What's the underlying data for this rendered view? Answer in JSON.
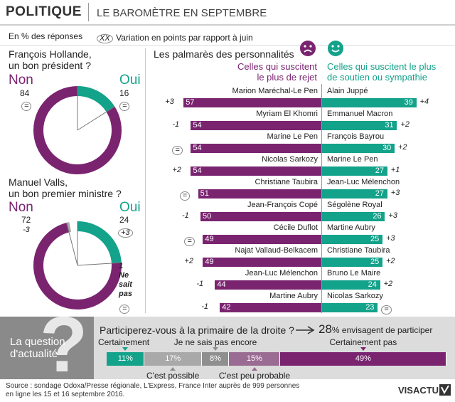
{
  "header": {
    "title": "POLITIQUE",
    "subtitle": "LE BAROMÈTRE EN SEPTEMBRE"
  },
  "legend": {
    "percent_label": "En % des réponses",
    "variation_symbol": "XX",
    "variation_label": "Variation en points par rapport à juin"
  },
  "hollande": {
    "question_line1": "François Hollande,",
    "question_line2": "un bon président ?",
    "non_label": "Non",
    "oui_label": "Oui",
    "non_value": "84",
    "oui_value": "16",
    "non_var": "=",
    "oui_var": "="
  },
  "valls": {
    "question_line1": "Manuel Valls,",
    "question_line2": "un bon premier ministre ?",
    "non_label": "Non",
    "oui_label": "Oui",
    "non_value": "72",
    "oui_value": "24",
    "non_var": "-3",
    "oui_var": "+3",
    "nsp_1": "1",
    "nsp_2": "Ne",
    "nsp_3": "sait",
    "nsp_4": "pas",
    "nsp_var": "="
  },
  "palmares": {
    "title": "Les palmarès des personnalités",
    "rejet_header_1": "Celles qui suscitent",
    "rejet_header_2": "le plus de rejet",
    "soutien_header_1": "Celles qui suscitent le plus",
    "soutien_header_2": "de soutien ou sympathie"
  },
  "colors": {
    "purple": "#7a2470",
    "teal": "#13a28a",
    "grey": "#a8a8a8"
  },
  "chart_data": [
    {
      "type": "pie",
      "title": "François Hollande, un bon président ?",
      "slices": [
        {
          "label": "Non",
          "value": 84
        },
        {
          "label": "Oui",
          "value": 16
        }
      ]
    },
    {
      "type": "pie",
      "title": "Manuel Valls, un bon premier ministre ?",
      "slices": [
        {
          "label": "Non",
          "value": 72
        },
        {
          "label": "Oui",
          "value": 24
        },
        {
          "label": "Ne sait pas",
          "value": 1
        }
      ]
    },
    {
      "type": "bar",
      "title": "Celles qui suscitent le plus de rejet",
      "rows": [
        {
          "name": "Marion Maréchal-Le Pen",
          "value": 57,
          "var": "+3"
        },
        {
          "name": "Myriam El Khomri",
          "value": 54,
          "var": "-1"
        },
        {
          "name": "Marine Le Pen",
          "value": 54,
          "var": "="
        },
        {
          "name": "Nicolas Sarkozy",
          "value": 54,
          "var": "+2"
        },
        {
          "name": "Christiane Taubira",
          "value": 51,
          "var": "="
        },
        {
          "name": "Jean-François Copé",
          "value": 50,
          "var": "-1"
        },
        {
          "name": "Cécile Duflot",
          "value": 49,
          "var": "="
        },
        {
          "name": "Najat Vallaud-Belkacem",
          "value": 49,
          "var": "+2"
        },
        {
          "name": "Jean-Luc Mélenchon",
          "value": 44,
          "var": "-1"
        },
        {
          "name": "Martine Aubry",
          "value": 42,
          "var": "-1"
        }
      ]
    },
    {
      "type": "bar",
      "title": "Celles qui suscitent le plus de soutien ou sympathie",
      "rows": [
        {
          "name": "Alain Juppé",
          "value": 39,
          "var": "+4"
        },
        {
          "name": "Emmanuel Macron",
          "value": 31,
          "var": "+2"
        },
        {
          "name": "François Bayrou",
          "value": 30,
          "var": "+2"
        },
        {
          "name": "Marine Le Pen",
          "value": 27,
          "var": "+1"
        },
        {
          "name": "Jean-Luc Mélenchon",
          "value": 27,
          "var": "+3"
        },
        {
          "name": "Ségolène Royal",
          "value": 26,
          "var": "+3"
        },
        {
          "name": "Martine Aubry",
          "value": 25,
          "var": "+3"
        },
        {
          "name": "Christiane Taubira",
          "value": 25,
          "var": "+2"
        },
        {
          "name": "Bruno Le Maire",
          "value": 24,
          "var": "+2"
        },
        {
          "name": "Nicolas Sarkozy",
          "value": 23,
          "var": "="
        }
      ]
    },
    {
      "type": "bar",
      "title": "Participerez-vous à la primaire de la droite ?",
      "segments": [
        {
          "label": "Certainement",
          "value": 11,
          "display": "11%"
        },
        {
          "label": "C'est possible",
          "value": 17,
          "display": "17%"
        },
        {
          "label": "Je ne sais pas encore",
          "value": 8,
          "display": "8%"
        },
        {
          "label": "C'est peu probable",
          "value": 15,
          "display": "15%"
        },
        {
          "label": "Certainement pas",
          "value": 49,
          "display": "49%"
        }
      ]
    }
  ],
  "actualite": {
    "label_1": "La question",
    "label_2": "d'actualité",
    "qmark": "?",
    "question": "Participerez-vous à la primaire de la droite ?",
    "result_value": "28",
    "result_text": "% envisagent de participer"
  },
  "footer": {
    "line1": "Source : sondage Odoxa/Presse régionale, L'Express, France Inter auprès de 999 personnes",
    "line2": "en ligne les 15 et 16 septembre 2016.",
    "brand": "VISACTU"
  }
}
